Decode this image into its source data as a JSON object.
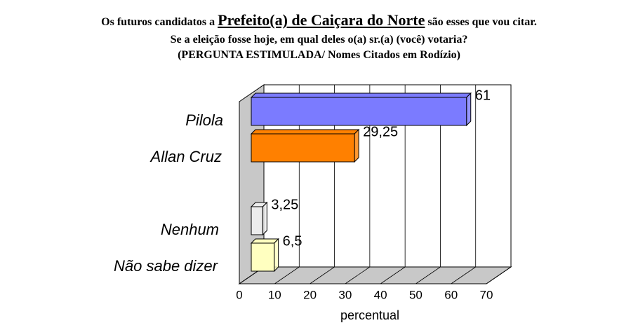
{
  "chart_data": {
    "type": "bar3d_horizontal",
    "title": [
      "Os futuros candidatos a",
      "Prefeito(a) de Caiçara do Norte",
      "são esses que vou citar."
    ],
    "subtitle": [
      "Se a eleição fosse hoje, em qual deles o(a) sr.(a) (você) votaria?",
      "(PERGUNTA ESTIMULADA/ Nomes Citados em Rodízio)"
    ],
    "categories": [
      "Pilola",
      "Allan Cruz",
      null,
      "Nenhum",
      "Não sabe dizer"
    ],
    "values": [
      61,
      29.25,
      null,
      3.25,
      6.5
    ],
    "value_labels": [
      "61",
      "29,25",
      null,
      "3,25",
      "6,5"
    ],
    "colors": [
      "#7b7bff",
      "#ff8000",
      null,
      "#ececec",
      "#ffffc0"
    ],
    "xlim": [
      0,
      70
    ],
    "xticks": [
      0,
      10,
      20,
      30,
      40,
      50,
      60,
      70
    ],
    "xlabel": "percentual",
    "grid": true
  }
}
